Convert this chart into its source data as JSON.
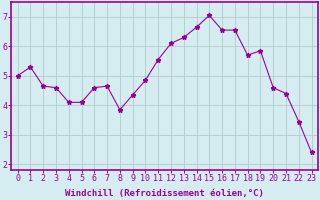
{
  "x": [
    0,
    1,
    2,
    3,
    4,
    5,
    6,
    7,
    8,
    9,
    10,
    11,
    12,
    13,
    14,
    15,
    16,
    17,
    18,
    19,
    20,
    21,
    22,
    23
  ],
  "y": [
    5.0,
    5.3,
    4.65,
    4.6,
    4.1,
    4.1,
    4.6,
    4.65,
    3.85,
    4.35,
    4.85,
    5.55,
    6.1,
    6.3,
    6.65,
    7.05,
    6.55,
    6.55,
    5.7,
    5.85,
    4.6,
    4.4,
    3.45,
    2.4
  ],
  "line_color": "#990099",
  "marker": "*",
  "marker_size": 3.5,
  "bg_color": "#d5edf0",
  "grid_color": "#b0cccc",
  "xlabel": "Windchill (Refroidissement éolien,°C)",
  "xlabel_color": "#990099",
  "xlabel_fontsize": 6.5,
  "ylabel_ticks": [
    2,
    3,
    4,
    5,
    6,
    7
  ],
  "ylim": [
    1.8,
    7.5
  ],
  "xlim": [
    -0.5,
    23.5
  ],
  "tick_color": "#990099",
  "tick_fontsize": 6,
  "spine_color": "#990099",
  "xtick_labels": [
    "0",
    "1",
    "2",
    "3",
    "4",
    "5",
    "6",
    "7",
    "8",
    "9",
    "10",
    "11",
    "12",
    "13",
    "14",
    "15",
    "16",
    "17",
    "18",
    "19",
    "20",
    "21",
    "22",
    "23"
  ]
}
